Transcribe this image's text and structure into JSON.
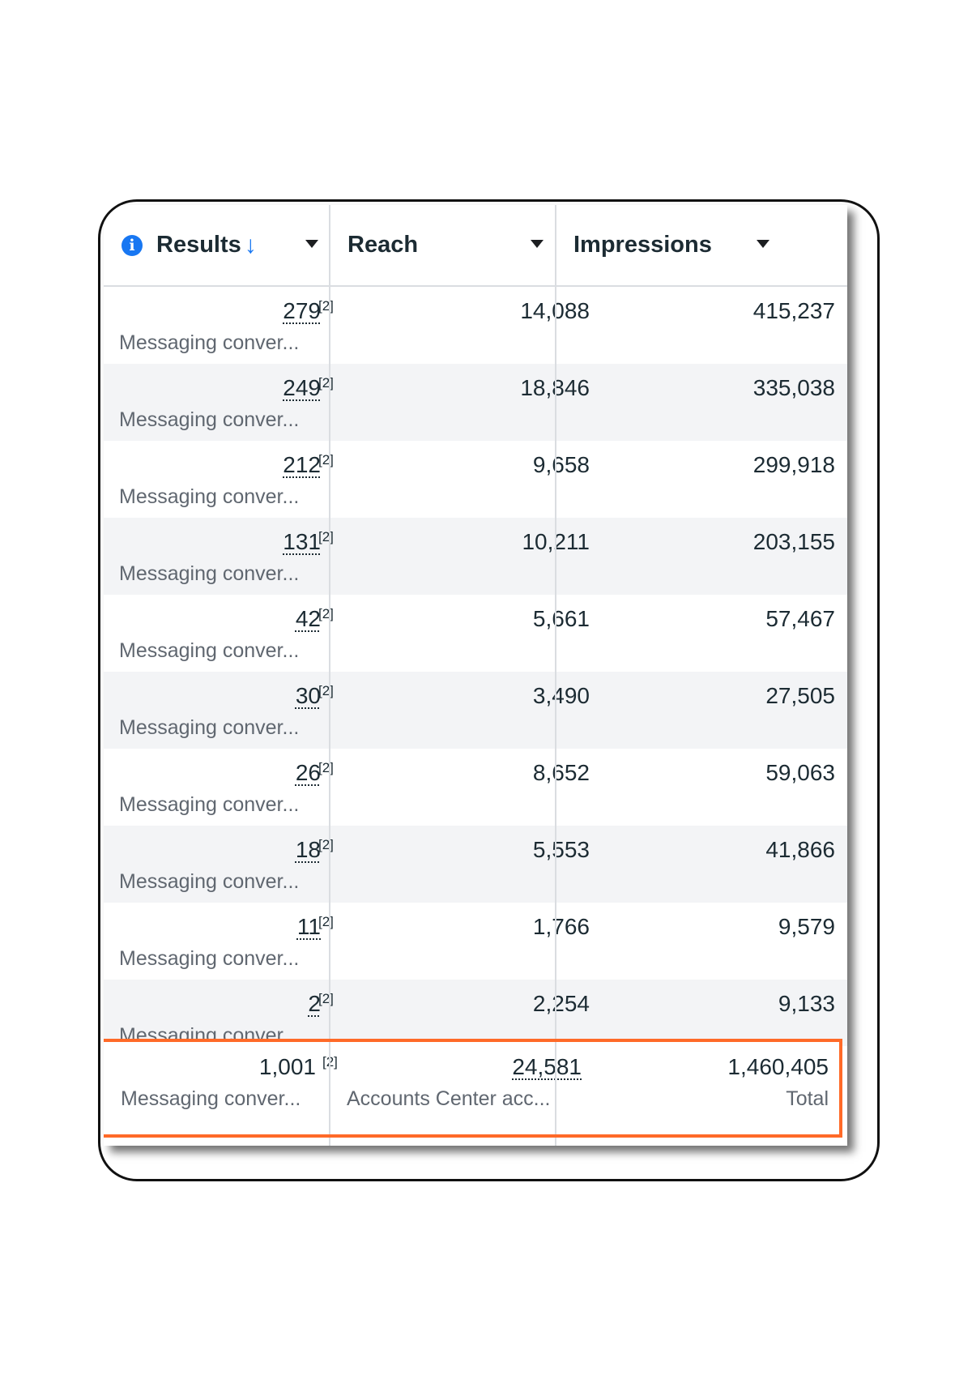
{
  "columns": {
    "results": {
      "label": "Results",
      "sort_icon": "arrow-down-icon",
      "info_icon": "info-icon"
    },
    "reach": {
      "label": "Reach"
    },
    "impressions": {
      "label": "Impressions"
    }
  },
  "rows": [
    {
      "results": "279",
      "note": "[2]",
      "result_type": "Messaging conver...",
      "reach": "14,088",
      "impressions": "415,237"
    },
    {
      "results": "249",
      "note": "[2]",
      "result_type": "Messaging conver...",
      "reach": "18,846",
      "impressions": "335,038"
    },
    {
      "results": "212",
      "note": "[2]",
      "result_type": "Messaging conver...",
      "reach": "9,658",
      "impressions": "299,918"
    },
    {
      "results": "131",
      "note": "[2]",
      "result_type": "Messaging conver...",
      "reach": "10,211",
      "impressions": "203,155"
    },
    {
      "results": "42",
      "note": "[2]",
      "result_type": "Messaging conver...",
      "reach": "5,661",
      "impressions": "57,467"
    },
    {
      "results": "30",
      "note": "[2]",
      "result_type": "Messaging conver...",
      "reach": "3,490",
      "impressions": "27,505"
    },
    {
      "results": "26",
      "note": "[2]",
      "result_type": "Messaging conver...",
      "reach": "8,652",
      "impressions": "59,063"
    },
    {
      "results": "18",
      "note": "[2]",
      "result_type": "Messaging conver...",
      "reach": "5,553",
      "impressions": "41,866"
    },
    {
      "results": "11",
      "note": "[2]",
      "result_type": "Messaging conver...",
      "reach": "1,766",
      "impressions": "9,579"
    },
    {
      "results": "2",
      "note": "[2]",
      "result_type": "Messaging conver...",
      "reach": "2,254",
      "impressions": "9,133"
    }
  ],
  "totals": {
    "results": "1,001",
    "note": "[2]",
    "results_sub": "Messaging conver...",
    "reach": "24,581",
    "reach_sub": "Accounts Center acc...",
    "impressions": "1,460,405",
    "impressions_sub": "Total"
  },
  "colors": {
    "accent": "#1877f2",
    "highlight": "#ff6a28",
    "row_alt": "#f3f4f6"
  }
}
